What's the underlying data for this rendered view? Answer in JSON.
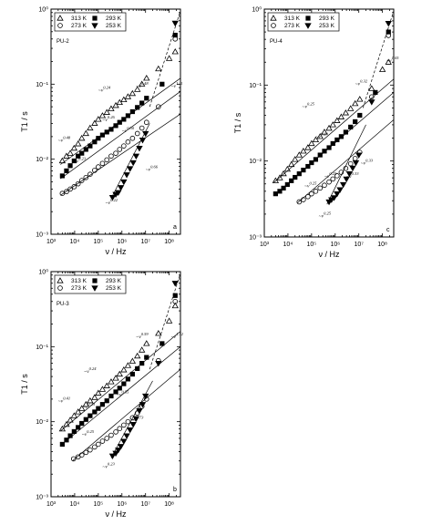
{
  "chart_data": [
    {
      "type": "scatter",
      "panel_label": "a",
      "sample_label": "PU-2",
      "xlabel": "ν / Hz",
      "ylabel": "T1 / s",
      "x_scale": "log",
      "y_scale": "log",
      "xlim": [
        1000,
        300000000
      ],
      "ylim": [
        0.001,
        1
      ],
      "x_ticks": [
        "10³",
        "10⁴",
        "10⁵",
        "10⁶",
        "10⁷",
        "10⁸"
      ],
      "y_ticks": [
        "10⁻³",
        "10⁻²",
        "10⁻¹",
        "10⁰"
      ],
      "legend_location": "top-left",
      "series": [
        {
          "name": "313 K",
          "marker": "open-triangle",
          "fill": "none",
          "x": [
            3000,
            4500,
            6500,
            9500,
            14000,
            20000,
            30000,
            45000,
            70000,
            100000,
            150000,
            230000,
            350000,
            550000,
            800000,
            1200000,
            1800000,
            2800000,
            4500000,
            7000000,
            11000000,
            35000000,
            100000000,
            180000000
          ],
          "y": [
            0.0095,
            0.011,
            0.012,
            0.014,
            0.016,
            0.019,
            0.022,
            0.026,
            0.03,
            0.034,
            0.038,
            0.042,
            0.047,
            0.052,
            0.057,
            0.062,
            0.068,
            0.075,
            0.085,
            0.1,
            0.12,
            0.16,
            0.22,
            0.27
          ]
        },
        {
          "name": "293 K",
          "marker": "filled-square",
          "fill": "#000",
          "x": [
            3000,
            4500,
            6500,
            9500,
            14000,
            20000,
            30000,
            45000,
            70000,
            100000,
            150000,
            230000,
            350000,
            550000,
            800000,
            1200000,
            1800000,
            2800000,
            4500000,
            7000000,
            11000000,
            50000000,
            180000000
          ],
          "y": [
            0.006,
            0.007,
            0.0082,
            0.0095,
            0.011,
            0.012,
            0.0135,
            0.015,
            0.017,
            0.019,
            0.021,
            0.023,
            0.025,
            0.028,
            0.031,
            0.034,
            0.038,
            0.043,
            0.049,
            0.056,
            0.065,
            0.1,
            0.45
          ]
        },
        {
          "name": "273 K",
          "marker": "open-circle",
          "fill": "none",
          "x": [
            3000,
            4500,
            6500,
            9500,
            14000,
            20000,
            30000,
            45000,
            70000,
            100000,
            150000,
            230000,
            350000,
            550000,
            800000,
            1200000,
            1800000,
            2800000,
            4500000,
            7000000,
            11000000,
            35000000,
            180000000
          ],
          "y": [
            0.0035,
            0.0037,
            0.004,
            0.0043,
            0.0047,
            0.0052,
            0.0057,
            0.0063,
            0.0071,
            0.0079,
            0.0088,
            0.0098,
            0.011,
            0.012,
            0.0135,
            0.015,
            0.017,
            0.019,
            0.022,
            0.026,
            0.031,
            0.05,
            0.4
          ]
        },
        {
          "name": "253 K",
          "marker": "filled-triangle-down",
          "fill": "#000",
          "x": [
            400000,
            550000,
            700000,
            900000,
            1200000,
            1600000,
            2200000,
            3000000,
            4000000,
            5500000,
            7500000,
            10000000,
            180000000
          ],
          "y": [
            0.0031,
            0.0034,
            0.0036,
            0.0042,
            0.005,
            0.0062,
            0.0075,
            0.009,
            0.011,
            0.014,
            0.018,
            0.022,
            0.65
          ]
        }
      ],
      "fits": [
        {
          "x": [
            2500,
            300000000
          ],
          "y": [
            0.0085,
            0.12
          ],
          "style": "solid"
        },
        {
          "x": [
            2500,
            300000000
          ],
          "y": [
            0.0055,
            0.08
          ],
          "style": "solid"
        },
        {
          "x": [
            2500,
            300000000
          ],
          "y": [
            0.0033,
            0.04
          ],
          "style": "solid"
        },
        {
          "x": [
            350000,
            15000000
          ],
          "y": [
            0.003,
            0.03
          ],
          "style": "solid"
        },
        {
          "x": [
            15000000,
            300000000
          ],
          "y": [
            0.05,
            0.95
          ],
          "style": "dashed"
        }
      ],
      "annotations": [
        {
          "text": "~ν",
          "exp": "0.24",
          "x": 100000,
          "y": 0.08
        },
        {
          "text": "~ν",
          "exp": "0.48",
          "x": 4000000,
          "y": 0.09
        },
        {
          "text": "~ν",
          "exp": "1.11",
          "x": 120000000,
          "y": 0.09
        },
        {
          "text": "~ν",
          "exp": "0.48",
          "x": 2000,
          "y": 0.017
        },
        {
          "text": "~ν",
          "exp": "0.26",
          "x": 150000,
          "y": 0.032
        },
        {
          "text": "~ν",
          "exp": "0.50",
          "x": 1000000,
          "y": 0.023
        },
        {
          "text": "~ν",
          "exp": "0.23",
          "x": 9000,
          "y": 0.009
        },
        {
          "text": "~ν",
          "exp": "0.66",
          "x": 10000000,
          "y": 0.007
        },
        {
          "text": "~ν",
          "exp": "0.22",
          "x": 200000,
          "y": 0.0025
        }
      ]
    },
    {
      "type": "scatter",
      "panel_label": "c",
      "sample_label": "PU-4",
      "xlabel": "ν / Hz",
      "ylabel": "T1 / s",
      "x_scale": "log",
      "y_scale": "log",
      "xlim": [
        1000,
        300000000
      ],
      "ylim": [
        0.001,
        1
      ],
      "x_ticks": [
        "10³",
        "10⁴",
        "10⁵",
        "10⁶",
        "10⁷",
        "10⁸"
      ],
      "y_ticks": [
        "10⁻³",
        "10⁻²",
        "10⁻¹",
        "10⁰"
      ],
      "legend_location": "top-left",
      "series": [
        {
          "name": "313 K",
          "marker": "open-triangle",
          "fill": "none",
          "x": [
            3000,
            4500,
            6500,
            9500,
            14000,
            20000,
            30000,
            45000,
            70000,
            100000,
            150000,
            230000,
            350000,
            550000,
            800000,
            1200000,
            1800000,
            2800000,
            4500000,
            7000000,
            11000000,
            35000000,
            100000000,
            180000000
          ],
          "y": [
            0.0055,
            0.006,
            0.0068,
            0.0078,
            0.009,
            0.0105,
            0.012,
            0.0135,
            0.015,
            0.017,
            0.019,
            0.021,
            0.024,
            0.027,
            0.03,
            0.034,
            0.038,
            0.043,
            0.049,
            0.057,
            0.065,
            0.09,
            0.16,
            0.2
          ]
        },
        {
          "name": "293 K",
          "marker": "filled-square",
          "fill": "#000",
          "x": [
            3000,
            4500,
            6500,
            9500,
            14000,
            20000,
            30000,
            45000,
            70000,
            100000,
            150000,
            230000,
            350000,
            550000,
            800000,
            1200000,
            1800000,
            2800000,
            4500000,
            7000000,
            11000000,
            50000000,
            180000000
          ],
          "y": [
            0.0037,
            0.004,
            0.0044,
            0.0049,
            0.0055,
            0.0061,
            0.0068,
            0.0076,
            0.0085,
            0.0095,
            0.0105,
            0.012,
            0.0135,
            0.015,
            0.017,
            0.019,
            0.021,
            0.024,
            0.028,
            0.033,
            0.04,
            0.08,
            0.5
          ]
        },
        {
          "name": "273 K",
          "marker": "open-circle",
          "fill": "none",
          "x": [
            30000,
            45000,
            70000,
            100000,
            150000,
            230000,
            350000,
            550000,
            800000,
            1200000,
            1800000,
            2800000,
            4500000,
            7000000,
            11000000,
            35000000,
            180000000
          ],
          "y": [
            0.0029,
            0.0031,
            0.0034,
            0.0037,
            0.004,
            0.0044,
            0.0048,
            0.0053,
            0.0058,
            0.0064,
            0.0071,
            0.008,
            0.0092,
            0.0108,
            0.013,
            0.07,
            0.45
          ]
        },
        {
          "name": "253 K",
          "marker": "filled-triangle-down",
          "fill": "#000",
          "x": [
            550000,
            700000,
            900000,
            1200000,
            1600000,
            2200000,
            3000000,
            4000000,
            5500000,
            7500000,
            10000000,
            35000000,
            180000000
          ],
          "y": [
            0.0029,
            0.0031,
            0.0033,
            0.0037,
            0.0042,
            0.0049,
            0.0058,
            0.0068,
            0.0081,
            0.0095,
            0.012,
            0.06,
            0.65
          ]
        }
      ],
      "fits": [
        {
          "x": [
            2500,
            300000000
          ],
          "y": [
            0.0052,
            0.12
          ],
          "style": "solid"
        },
        {
          "x": [
            2500,
            300000000
          ],
          "y": [
            0.0035,
            0.08
          ],
          "style": "solid"
        },
        {
          "x": [
            25000,
            300000000
          ],
          "y": [
            0.0028,
            0.035
          ],
          "style": "solid"
        },
        {
          "x": [
            450000,
            20000000
          ],
          "y": [
            0.0027,
            0.03
          ],
          "style": "solid"
        },
        {
          "x": [
            15000000,
            300000000
          ],
          "y": [
            0.05,
            0.95
          ],
          "style": "dashed"
        }
      ],
      "annotations": [
        {
          "text": "~ν",
          "exp": "0.32",
          "x": 7000000,
          "y": 0.1
        },
        {
          "text": "~ν",
          "exp": "1.05",
          "x": 150000000,
          "y": 0.2
        },
        {
          "text": "~ν",
          "exp": "0.25",
          "x": 40000,
          "y": 0.05
        },
        {
          "text": "~ν",
          "exp": "0.23",
          "x": 150000,
          "y": 0.02
        },
        {
          "text": "~ν",
          "exp": "0.25",
          "x": 350000,
          "y": 0.006
        },
        {
          "text": "~ν",
          "exp": "0.33",
          "x": 3000000,
          "y": 0.006
        },
        {
          "text": "~ν",
          "exp": "0.25",
          "x": 50000,
          "y": 0.0045
        },
        {
          "text": "~ν",
          "exp": "0.33",
          "x": 12000000,
          "y": 0.009
        },
        {
          "text": "~ν",
          "exp": "0.25",
          "x": 200000,
          "y": 0.0018
        }
      ]
    },
    {
      "type": "scatter",
      "panel_label": "b",
      "sample_label": "PU-3",
      "xlabel": "ν / Hz",
      "ylabel": "T1 / s",
      "x_scale": "log",
      "y_scale": "log",
      "xlim": [
        1000,
        300000000
      ],
      "ylim": [
        0.001,
        1
      ],
      "x_ticks": [
        "10³",
        "10⁴",
        "10⁵",
        "10⁶",
        "10⁷",
        "10⁸"
      ],
      "y_ticks": [
        "10⁻³",
        "10⁻²",
        "10⁻¹",
        "10⁰"
      ],
      "legend_location": "top-left",
      "series": [
        {
          "name": "313 K",
          "marker": "open-triangle",
          "fill": "none",
          "x": [
            3000,
            4500,
            6500,
            9500,
            14000,
            20000,
            30000,
            45000,
            70000,
            100000,
            150000,
            230000,
            350000,
            550000,
            800000,
            1200000,
            1800000,
            2800000,
            4500000,
            7000000,
            11000000,
            35000000,
            100000000,
            180000000
          ],
          "y": [
            0.008,
            0.0092,
            0.0105,
            0.012,
            0.0135,
            0.015,
            0.017,
            0.019,
            0.021,
            0.024,
            0.027,
            0.03,
            0.034,
            0.038,
            0.043,
            0.049,
            0.056,
            0.064,
            0.075,
            0.09,
            0.11,
            0.15,
            0.22,
            0.35
          ]
        },
        {
          "name": "293 K",
          "marker": "filled-square",
          "fill": "#000",
          "x": [
            3000,
            4500,
            6500,
            9500,
            14000,
            20000,
            30000,
            45000,
            70000,
            100000,
            150000,
            230000,
            350000,
            550000,
            800000,
            1200000,
            1800000,
            2800000,
            4500000,
            7000000,
            11000000,
            50000000,
            180000000
          ],
          "y": [
            0.005,
            0.0057,
            0.0065,
            0.0074,
            0.0084,
            0.0095,
            0.0107,
            0.012,
            0.0135,
            0.015,
            0.017,
            0.019,
            0.022,
            0.025,
            0.028,
            0.032,
            0.037,
            0.043,
            0.051,
            0.06,
            0.072,
            0.11,
            0.48
          ]
        },
        {
          "name": "273 K",
          "marker": "open-circle",
          "fill": "none",
          "x": [
            9000,
            14000,
            20000,
            30000,
            45000,
            70000,
            100000,
            150000,
            230000,
            350000,
            550000,
            800000,
            1200000,
            1800000,
            2800000,
            4500000,
            7000000,
            11000000,
            35000000,
            180000000
          ],
          "y": [
            0.0032,
            0.0034,
            0.0036,
            0.0039,
            0.0042,
            0.0046,
            0.005,
            0.0055,
            0.006,
            0.0066,
            0.0073,
            0.0081,
            0.009,
            0.01,
            0.0113,
            0.013,
            0.016,
            0.02,
            0.065,
            0.4
          ]
        },
        {
          "name": "253 K",
          "marker": "filled-triangle-down",
          "fill": "#000",
          "x": [
            400000,
            550000,
            700000,
            900000,
            1200000,
            1600000,
            2200000,
            3000000,
            4000000,
            5500000,
            7500000,
            10000000,
            35000000,
            180000000
          ],
          "y": [
            0.0035,
            0.0038,
            0.0042,
            0.0047,
            0.0055,
            0.0065,
            0.0078,
            0.0092,
            0.011,
            0.014,
            0.017,
            0.022,
            0.06,
            0.7
          ]
        }
      ],
      "fits": [
        {
          "x": [
            2500,
            300000000
          ],
          "y": [
            0.0075,
            0.16
          ],
          "style": "solid"
        },
        {
          "x": [
            2500,
            300000000
          ],
          "y": [
            0.0048,
            0.1
          ],
          "style": "solid"
        },
        {
          "x": [
            8000,
            300000000
          ],
          "y": [
            0.003,
            0.05
          ],
          "style": "solid"
        },
        {
          "x": [
            350000,
            20000000
          ],
          "y": [
            0.0033,
            0.035
          ],
          "style": "solid"
        },
        {
          "x": [
            15000000,
            300000000
          ],
          "y": [
            0.05,
            0.95
          ],
          "style": "dashed"
        }
      ],
      "annotations": [
        {
          "text": "~ν",
          "exp": "0.24",
          "x": 25000,
          "y": 0.045
        },
        {
          "text": "~ν",
          "exp": "0.59",
          "x": 4000000,
          "y": 0.13
        },
        {
          "text": "~ν",
          "exp": "1.32",
          "x": 120000000,
          "y": 0.13
        },
        {
          "text": "~ν",
          "exp": "0.41",
          "x": 2000,
          "y": 0.018
        },
        {
          "text": "~ν",
          "exp": "0.23",
          "x": 22000,
          "y": 0.015
        },
        {
          "text": "~ν",
          "exp": "0.55",
          "x": 600000,
          "y": 0.022
        },
        {
          "text": "~ν",
          "exp": "0.25",
          "x": 20000,
          "y": 0.0065
        },
        {
          "text": "~ν",
          "exp": "0.73",
          "x": 2500000,
          "y": 0.01
        },
        {
          "text": "~ν",
          "exp": "0.23",
          "x": 150000,
          "y": 0.0024
        }
      ]
    }
  ]
}
